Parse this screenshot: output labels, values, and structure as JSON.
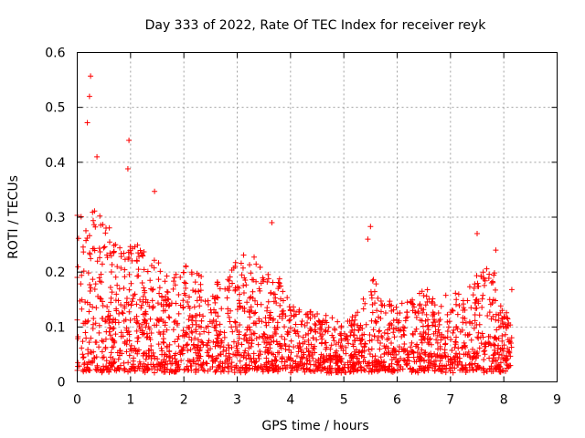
{
  "chart_data": {
    "type": "scatter",
    "title": "Day 333 of 2022, Rate Of TEC Index for receiver reyk",
    "xlabel": "GPS time / hours",
    "ylabel": "ROTI / TECUs",
    "xlim": [
      0,
      9
    ],
    "ylim": [
      0,
      0.6
    ],
    "xticks": [
      "0",
      "1",
      "2",
      "3",
      "4",
      "5",
      "6",
      "7",
      "8",
      "9"
    ],
    "yticks": [
      "0",
      "0.1",
      "0.2",
      "0.3",
      "0.4",
      "0.5",
      "0.6"
    ],
    "grid": true,
    "marker": "+",
    "color": "#ff0000",
    "data_extent_hours": [
      0,
      8.15
    ],
    "notable_points": [
      {
        "x": 0.25,
        "y": 0.557
      },
      {
        "x": 0.23,
        "y": 0.52
      },
      {
        "x": 0.19,
        "y": 0.472
      },
      {
        "x": 0.37,
        "y": 0.41
      },
      {
        "x": 0.97,
        "y": 0.44
      },
      {
        "x": 0.95,
        "y": 0.388
      },
      {
        "x": 1.45,
        "y": 0.347
      },
      {
        "x": 3.65,
        "y": 0.29
      },
      {
        "x": 5.5,
        "y": 0.283
      },
      {
        "x": 5.45,
        "y": 0.26
      },
      {
        "x": 7.5,
        "y": 0.27
      },
      {
        "x": 7.85,
        "y": 0.24
      },
      {
        "x": 8.15,
        "y": 0.168
      }
    ],
    "envelope": [
      {
        "x": 0.0,
        "low": 0.02,
        "high": 0.33
      },
      {
        "x": 0.25,
        "low": 0.02,
        "high": 0.32
      },
      {
        "x": 0.5,
        "low": 0.02,
        "high": 0.3
      },
      {
        "x": 0.75,
        "low": 0.02,
        "high": 0.25
      },
      {
        "x": 1.0,
        "low": 0.02,
        "high": 0.26
      },
      {
        "x": 1.25,
        "low": 0.02,
        "high": 0.24
      },
      {
        "x": 1.5,
        "low": 0.02,
        "high": 0.22
      },
      {
        "x": 1.75,
        "low": 0.02,
        "high": 0.2
      },
      {
        "x": 2.0,
        "low": 0.02,
        "high": 0.21
      },
      {
        "x": 2.25,
        "low": 0.02,
        "high": 0.2
      },
      {
        "x": 2.5,
        "low": 0.02,
        "high": 0.18
      },
      {
        "x": 2.75,
        "low": 0.02,
        "high": 0.2
      },
      {
        "x": 3.0,
        "low": 0.02,
        "high": 0.22
      },
      {
        "x": 3.25,
        "low": 0.02,
        "high": 0.24
      },
      {
        "x": 3.5,
        "low": 0.02,
        "high": 0.21
      },
      {
        "x": 3.75,
        "low": 0.02,
        "high": 0.2
      },
      {
        "x": 4.0,
        "low": 0.02,
        "high": 0.14
      },
      {
        "x": 4.25,
        "low": 0.02,
        "high": 0.13
      },
      {
        "x": 4.5,
        "low": 0.02,
        "high": 0.13
      },
      {
        "x": 4.75,
        "low": 0.02,
        "high": 0.12
      },
      {
        "x": 5.0,
        "low": 0.02,
        "high": 0.11
      },
      {
        "x": 5.25,
        "low": 0.02,
        "high": 0.13
      },
      {
        "x": 5.5,
        "low": 0.02,
        "high": 0.2
      },
      {
        "x": 5.75,
        "low": 0.02,
        "high": 0.15
      },
      {
        "x": 6.0,
        "low": 0.02,
        "high": 0.14
      },
      {
        "x": 6.25,
        "low": 0.02,
        "high": 0.15
      },
      {
        "x": 6.5,
        "low": 0.02,
        "high": 0.17
      },
      {
        "x": 6.75,
        "low": 0.02,
        "high": 0.15
      },
      {
        "x": 7.0,
        "low": 0.02,
        "high": 0.17
      },
      {
        "x": 7.25,
        "low": 0.02,
        "high": 0.16
      },
      {
        "x": 7.5,
        "low": 0.02,
        "high": 0.2
      },
      {
        "x": 7.75,
        "low": 0.02,
        "high": 0.22
      },
      {
        "x": 8.0,
        "low": 0.02,
        "high": 0.15
      },
      {
        "x": 8.15,
        "low": 0.03,
        "high": 0.1
      }
    ]
  }
}
